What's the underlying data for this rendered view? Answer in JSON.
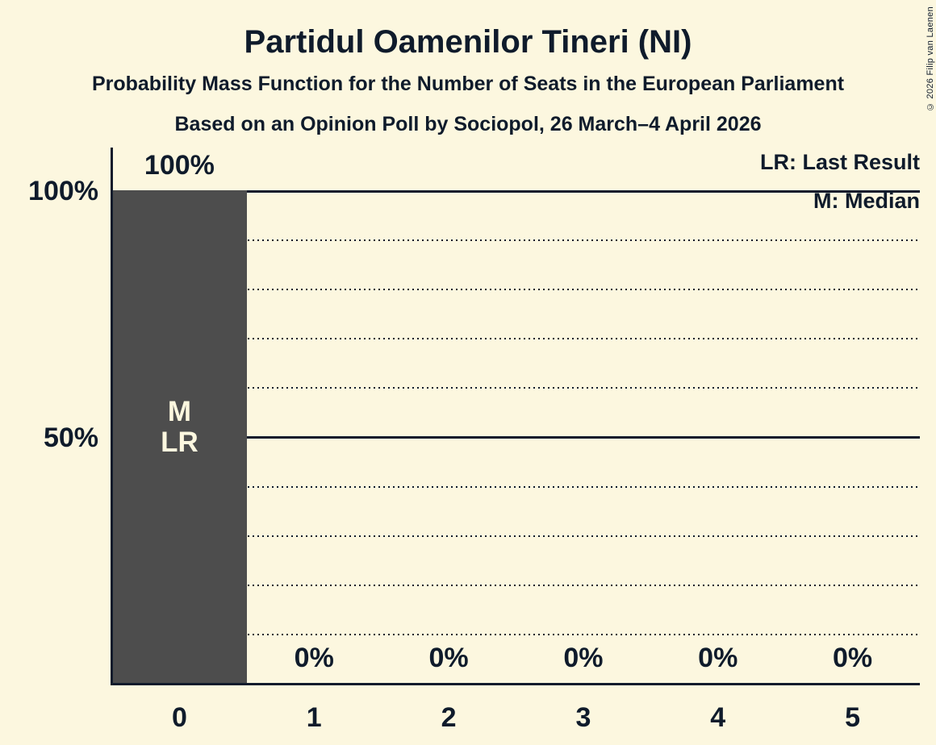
{
  "header": {
    "title": "Partidul Oamenilor Tineri (NI)",
    "subtitle": "Probability Mass Function for the Number of Seats in the European Parliament",
    "source": "Based on an Opinion Poll by Sociopol, 26 March–4 April 2026"
  },
  "copyright": "© 2026 Filip van Laenen",
  "colors": {
    "background": "#FCF7DF",
    "text": "#0F1B2B",
    "bar": "#4D4D4D",
    "bar_label": "#FCF7DF"
  },
  "chart_data": {
    "type": "bar",
    "title": "Partidul Oamenilor Tineri (NI)",
    "categories": [
      "0",
      "1",
      "2",
      "3",
      "4",
      "5"
    ],
    "values": [
      100,
      0,
      0,
      0,
      0,
      0
    ],
    "value_labels": [
      "100%",
      "0%",
      "0%",
      "0%",
      "0%",
      "0%"
    ],
    "xlabel": "",
    "ylabel": "",
    "ylim": [
      0,
      100
    ],
    "y_ticks": [
      {
        "value": 100,
        "label": "100%"
      },
      {
        "value": 50,
        "label": "50%"
      }
    ],
    "grid": {
      "step": 10,
      "solid_at": [
        50,
        100
      ],
      "style": "dotted"
    },
    "legend": [
      "LR: Last Result",
      "M: Median"
    ],
    "legend_position": "top-right",
    "annotations": [
      {
        "category_index": 0,
        "lines": [
          "M",
          "LR"
        ],
        "meaning": [
          "Median",
          "Last Result"
        ]
      }
    ]
  }
}
